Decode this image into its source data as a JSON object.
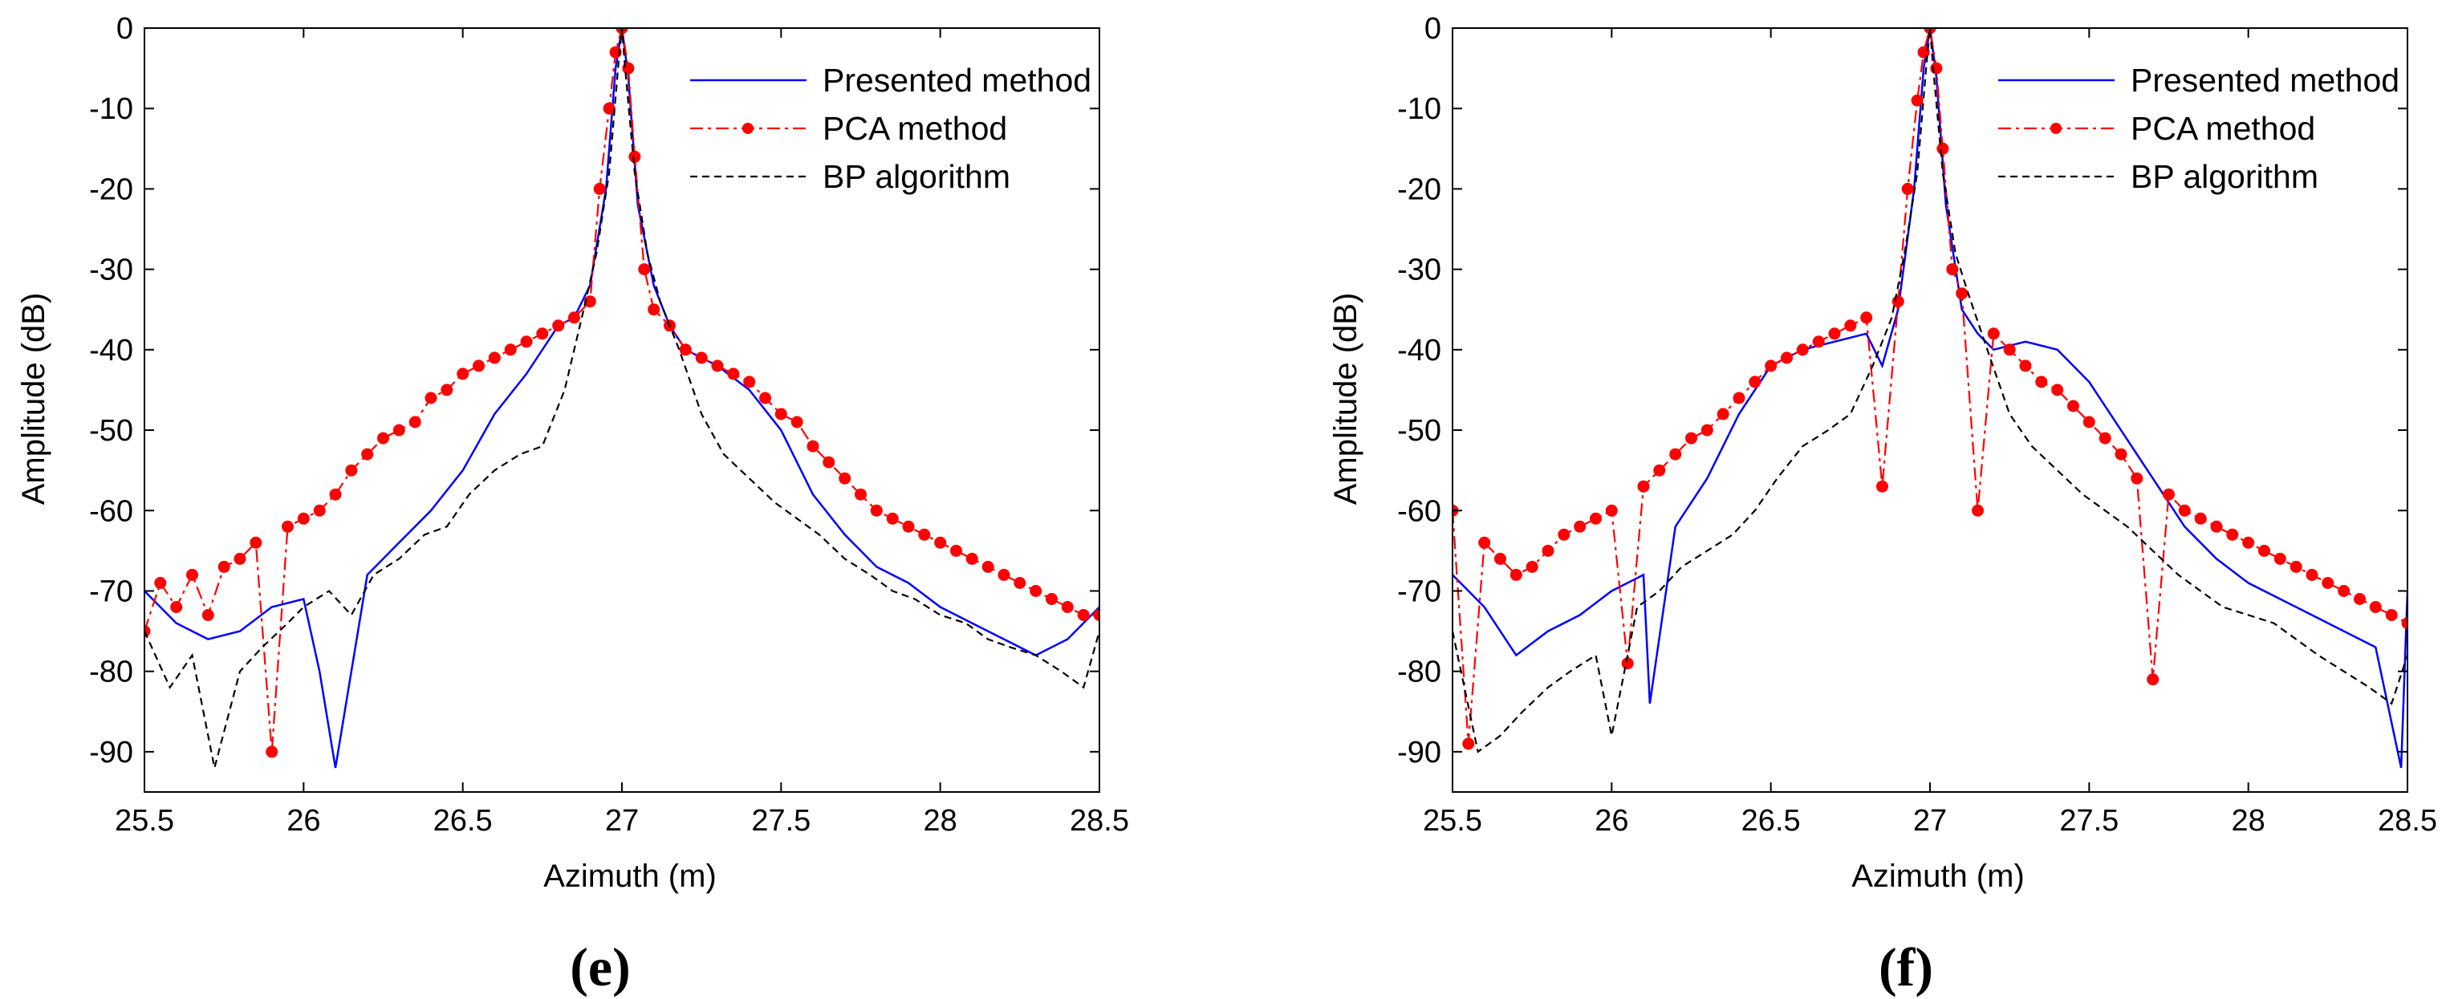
{
  "figure": {
    "panels": [
      "e",
      "f"
    ]
  },
  "chart_data": [
    {
      "type": "line",
      "caption": "(e)",
      "title": "",
      "xlabel": "Azimuth (m)",
      "ylabel": "Amplitude (dB)",
      "xlim": [
        25.5,
        28.5
      ],
      "ylim": [
        -95,
        0
      ],
      "xticks": [
        "25.5",
        "26",
        "26.5",
        "27",
        "27.5",
        "28",
        "28.5"
      ],
      "yticks": [
        "0",
        "-10",
        "-20",
        "-30",
        "-40",
        "-50",
        "-60",
        "-70",
        "-80",
        "-90"
      ],
      "grid": false,
      "legend_position": "top-right",
      "series": [
        {
          "name": "Presented method",
          "color": "#0000ff",
          "style": "solid",
          "marker": "none",
          "x": [
            25.5,
            25.6,
            25.7,
            25.8,
            25.9,
            26.0,
            26.05,
            26.1,
            26.2,
            26.3,
            26.4,
            26.5,
            26.6,
            26.7,
            26.8,
            26.85,
            26.9,
            26.95,
            26.98,
            27.0,
            27.02,
            27.05,
            27.1,
            27.15,
            27.2,
            27.3,
            27.4,
            27.5,
            27.6,
            27.7,
            27.8,
            27.9,
            28.0,
            28.1,
            28.2,
            28.3,
            28.4,
            28.5
          ],
          "y": [
            -70,
            -74,
            -76,
            -75,
            -72,
            -71,
            -80,
            -92,
            -68,
            -64,
            -60,
            -55,
            -48,
            -43,
            -37,
            -36,
            -32,
            -20,
            -5,
            0,
            -6,
            -22,
            -32,
            -37,
            -40,
            -42,
            -45,
            -50,
            -58,
            -63,
            -67,
            -69,
            -72,
            -74,
            -76,
            -78,
            -76,
            -72
          ]
        },
        {
          "name": "PCA method",
          "color": "#ff0000",
          "style": "dash-dot",
          "marker": "circle",
          "x": [
            25.5,
            25.55,
            25.6,
            25.65,
            25.7,
            25.75,
            25.8,
            25.85,
            25.9,
            25.95,
            26.0,
            26.05,
            26.1,
            26.15,
            26.2,
            26.25,
            26.3,
            26.35,
            26.4,
            26.45,
            26.5,
            26.55,
            26.6,
            26.65,
            26.7,
            26.75,
            26.8,
            26.85,
            26.9,
            26.93,
            26.96,
            26.98,
            27.0,
            27.02,
            27.04,
            27.07,
            27.1,
            27.15,
            27.2,
            27.25,
            27.3,
            27.35,
            27.4,
            27.45,
            27.5,
            27.55,
            27.6,
            27.65,
            27.7,
            27.75,
            27.8,
            27.85,
            27.9,
            27.95,
            28.0,
            28.05,
            28.1,
            28.15,
            28.2,
            28.25,
            28.3,
            28.35,
            28.4,
            28.45,
            28.5
          ],
          "y": [
            -75,
            -69,
            -72,
            -68,
            -73,
            -67,
            -66,
            -64,
            -90,
            -62,
            -61,
            -60,
            -58,
            -55,
            -53,
            -51,
            -50,
            -49,
            -46,
            -45,
            -43,
            -42,
            -41,
            -40,
            -39,
            -38,
            -37,
            -36,
            -34,
            -20,
            -10,
            -3,
            0,
            -5,
            -16,
            -30,
            -35,
            -37,
            -40,
            -41,
            -42,
            -43,
            -44,
            -46,
            -48,
            -49,
            -52,
            -54,
            -56,
            -58,
            -60,
            -61,
            -62,
            -63,
            -64,
            -65,
            -66,
            -67,
            -68,
            -69,
            -70,
            -71,
            -72,
            -73,
            -73
          ]
        },
        {
          "name": "BP algorithm",
          "color": "#000000",
          "style": "dashed",
          "marker": "none",
          "x": [
            25.5,
            25.58,
            25.65,
            25.72,
            25.8,
            25.87,
            25.95,
            26.0,
            26.08,
            26.15,
            26.22,
            26.3,
            26.38,
            26.45,
            26.52,
            26.6,
            26.68,
            26.75,
            26.82,
            26.88,
            26.92,
            26.96,
            26.99,
            27.0,
            27.01,
            27.04,
            27.08,
            27.12,
            27.18,
            27.25,
            27.32,
            27.4,
            27.48,
            27.55,
            27.62,
            27.7,
            27.78,
            27.85,
            27.92,
            28.0,
            28.08,
            28.15,
            28.22,
            28.3,
            28.38,
            28.45,
            28.5
          ],
          "y": [
            -75,
            -82,
            -78,
            -92,
            -80,
            -77,
            -74,
            -72,
            -70,
            -73,
            -68,
            -66,
            -63,
            -62,
            -58,
            -55,
            -53,
            -52,
            -45,
            -35,
            -28,
            -18,
            -4,
            0,
            -5,
            -18,
            -28,
            -34,
            -40,
            -48,
            -53,
            -56,
            -59,
            -61,
            -63,
            -66,
            -68,
            -70,
            -71,
            -73,
            -74,
            -76,
            -77,
            -78,
            -80,
            -82,
            -75
          ]
        }
      ]
    },
    {
      "type": "line",
      "caption": "(f)",
      "title": "",
      "xlabel": "Azimuth (m)",
      "ylabel": "Amplitude (dB)",
      "xlim": [
        25.5,
        28.5
      ],
      "ylim": [
        -95,
        0
      ],
      "xticks": [
        "25.5",
        "26",
        "26.5",
        "27",
        "27.5",
        "28",
        "28.5"
      ],
      "yticks": [
        "0",
        "-10",
        "-20",
        "-30",
        "-40",
        "-50",
        "-60",
        "-70",
        "-80",
        "-90"
      ],
      "grid": false,
      "legend_position": "top-right",
      "series": [
        {
          "name": "Presented method",
          "color": "#0000ff",
          "style": "solid",
          "marker": "none",
          "x": [
            25.5,
            25.6,
            25.7,
            25.8,
            25.9,
            26.0,
            26.1,
            26.12,
            26.2,
            26.3,
            26.4,
            26.5,
            26.6,
            26.7,
            26.8,
            26.85,
            26.9,
            26.95,
            26.98,
            27.0,
            27.02,
            27.05,
            27.1,
            27.15,
            27.2,
            27.3,
            27.4,
            27.5,
            27.6,
            27.7,
            27.8,
            27.9,
            28.0,
            28.1,
            28.2,
            28.3,
            28.4,
            28.48,
            28.5
          ],
          "y": [
            -68,
            -72,
            -78,
            -75,
            -73,
            -70,
            -68,
            -84,
            -62,
            -56,
            -48,
            -42,
            -40,
            -39,
            -38,
            -42,
            -35,
            -20,
            -5,
            0,
            -6,
            -22,
            -35,
            -38,
            -40,
            -39,
            -40,
            -44,
            -50,
            -56,
            -62,
            -66,
            -69,
            -71,
            -73,
            -75,
            -77,
            -92,
            -70
          ]
        },
        {
          "name": "PCA method",
          "color": "#ff0000",
          "style": "dash-dot",
          "marker": "circle",
          "x": [
            25.5,
            25.55,
            25.6,
            25.65,
            25.7,
            25.75,
            25.8,
            25.85,
            25.9,
            25.95,
            26.0,
            26.05,
            26.1,
            26.15,
            26.2,
            26.25,
            26.3,
            26.35,
            26.4,
            26.45,
            26.5,
            26.55,
            26.6,
            26.65,
            26.7,
            26.75,
            26.8,
            26.85,
            26.9,
            26.93,
            26.96,
            26.98,
            27.0,
            27.02,
            27.04,
            27.07,
            27.1,
            27.15,
            27.2,
            27.25,
            27.3,
            27.35,
            27.4,
            27.45,
            27.5,
            27.55,
            27.6,
            27.65,
            27.7,
            27.75,
            27.8,
            27.85,
            27.9,
            27.95,
            28.0,
            28.05,
            28.1,
            28.15,
            28.2,
            28.25,
            28.3,
            28.35,
            28.4,
            28.45,
            28.5
          ],
          "y": [
            -60,
            -89,
            -64,
            -66,
            -68,
            -67,
            -65,
            -63,
            -62,
            -61,
            -60,
            -79,
            -57,
            -55,
            -53,
            -51,
            -50,
            -48,
            -46,
            -44,
            -42,
            -41,
            -40,
            -39,
            -38,
            -37,
            -36,
            -57,
            -34,
            -20,
            -9,
            -3,
            0,
            -5,
            -15,
            -30,
            -33,
            -60,
            -38,
            -40,
            -42,
            -44,
            -45,
            -47,
            -49,
            -51,
            -53,
            -56,
            -81,
            -58,
            -60,
            -61,
            -62,
            -63,
            -64,
            -65,
            -66,
            -67,
            -68,
            -69,
            -70,
            -71,
            -72,
            -73,
            -74
          ]
        },
        {
          "name": "BP algorithm",
          "color": "#000000",
          "style": "dashed",
          "marker": "none",
          "x": [
            25.5,
            25.58,
            25.65,
            25.72,
            25.8,
            25.87,
            25.95,
            26.0,
            26.08,
            26.15,
            26.22,
            26.3,
            26.38,
            26.45,
            26.52,
            26.6,
            26.68,
            26.75,
            26.82,
            26.88,
            26.92,
            26.96,
            26.99,
            27.0,
            27.01,
            27.04,
            27.08,
            27.12,
            27.18,
            27.25,
            27.32,
            27.4,
            27.48,
            27.55,
            27.62,
            27.7,
            27.78,
            27.85,
            27.92,
            28.0,
            28.08,
            28.15,
            28.22,
            28.3,
            28.38,
            28.45,
            28.5
          ],
          "y": [
            -75,
            -90,
            -88,
            -85,
            -82,
            -80,
            -78,
            -88,
            -72,
            -70,
            -67,
            -65,
            -63,
            -60,
            -56,
            -52,
            -50,
            -48,
            -42,
            -36,
            -28,
            -18,
            -4,
            0,
            -5,
            -18,
            -28,
            -33,
            -40,
            -48,
            -52,
            -55,
            -58,
            -60,
            -62,
            -65,
            -68,
            -70,
            -72,
            -73,
            -74,
            -76,
            -78,
            -80,
            -82,
            -84,
            -78
          ]
        }
      ]
    }
  ]
}
